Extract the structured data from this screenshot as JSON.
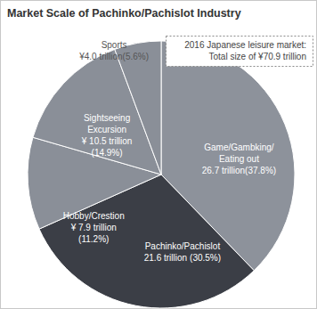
{
  "chart_data": {
    "type": "pie",
    "title": "Market Scale of Pachinko/Pachislot Industry",
    "annotation": [
      "2016 Japanese leisure market:",
      "Total size of ¥70.9 trillion"
    ],
    "categories": [
      "Game/Gambking/ Eating out",
      "Pachinko/Pachislot",
      "Hobby/Crestion",
      "Sightseeing Excursion",
      "Sports"
    ],
    "values": [
      26.7,
      21.6,
      7.9,
      10.5,
      4.0
    ],
    "value_labels": [
      "26.7 trillion",
      "21.6 trillion",
      "¥ 7.9 trillion",
      "¥ 10.5 trillion",
      "¥4.0 trillion"
    ],
    "percents": [
      37.8,
      30.5,
      11.2,
      14.9,
      5.6
    ],
    "percent_labels": [
      "(37.8%)",
      "(30.5%)",
      "(11.2%)",
      "(14.9%)",
      "(5.6%)"
    ],
    "colors": [
      "#8d929b",
      "#3b3e46",
      "#8a8f98",
      "#8a8f98",
      "#8a8f98"
    ],
    "data_labels": true
  }
}
